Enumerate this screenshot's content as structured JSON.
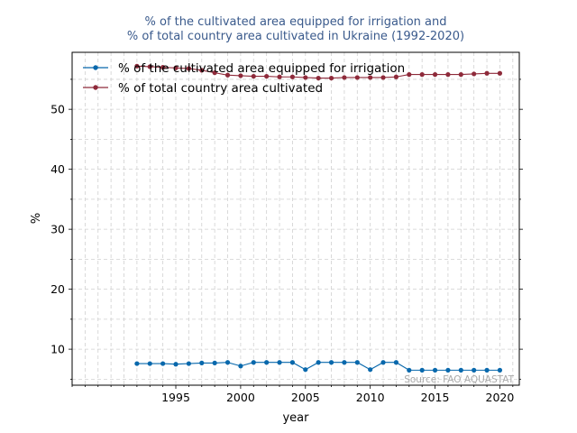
{
  "chart_data": {
    "type": "line",
    "title_line1": "% of the cultivated area equipped for irrigation and",
    "title_line2": "% of total country area cultivated in Ukraine (1992-2020)",
    "xlabel": "year",
    "ylabel": "%",
    "xlim": [
      1987,
      2021.5
    ],
    "ylim": [
      4,
      59.5
    ],
    "xticks": [
      1995,
      2000,
      2005,
      2010,
      2015,
      2020
    ],
    "yticks": [
      10,
      20,
      30,
      40,
      50
    ],
    "grid": true,
    "legend_position": "top-left",
    "source": "Source: FAO AQUASTAT",
    "x": [
      1992,
      1993,
      1994,
      1995,
      1996,
      1997,
      1998,
      1999,
      2000,
      2001,
      2002,
      2003,
      2004,
      2005,
      2006,
      2007,
      2008,
      2009,
      2010,
      2011,
      2012,
      2013,
      2014,
      2015,
      2016,
      2017,
      2018,
      2019,
      2020
    ],
    "series": [
      {
        "name": "% of the cultivated area equipped for irrigation",
        "color": "#0868ac",
        "values": [
          7.6,
          7.6,
          7.6,
          7.5,
          7.6,
          7.7,
          7.7,
          7.8,
          7.2,
          7.8,
          7.8,
          7.8,
          7.8,
          6.6,
          7.8,
          7.8,
          7.8,
          7.8,
          6.6,
          7.8,
          7.8,
          6.5,
          6.5,
          6.5,
          6.5,
          6.5,
          6.5,
          6.5,
          6.5
        ]
      },
      {
        "name": "% of total country area cultivated",
        "color": "#8e2a3a",
        "values": [
          57.2,
          57.1,
          57.0,
          56.9,
          56.8,
          56.5,
          56.1,
          55.7,
          55.6,
          55.5,
          55.5,
          55.4,
          55.4,
          55.3,
          55.2,
          55.2,
          55.3,
          55.3,
          55.3,
          55.3,
          55.4,
          55.8,
          55.8,
          55.8,
          55.8,
          55.8,
          55.9,
          56.0,
          56.0
        ]
      }
    ]
  }
}
